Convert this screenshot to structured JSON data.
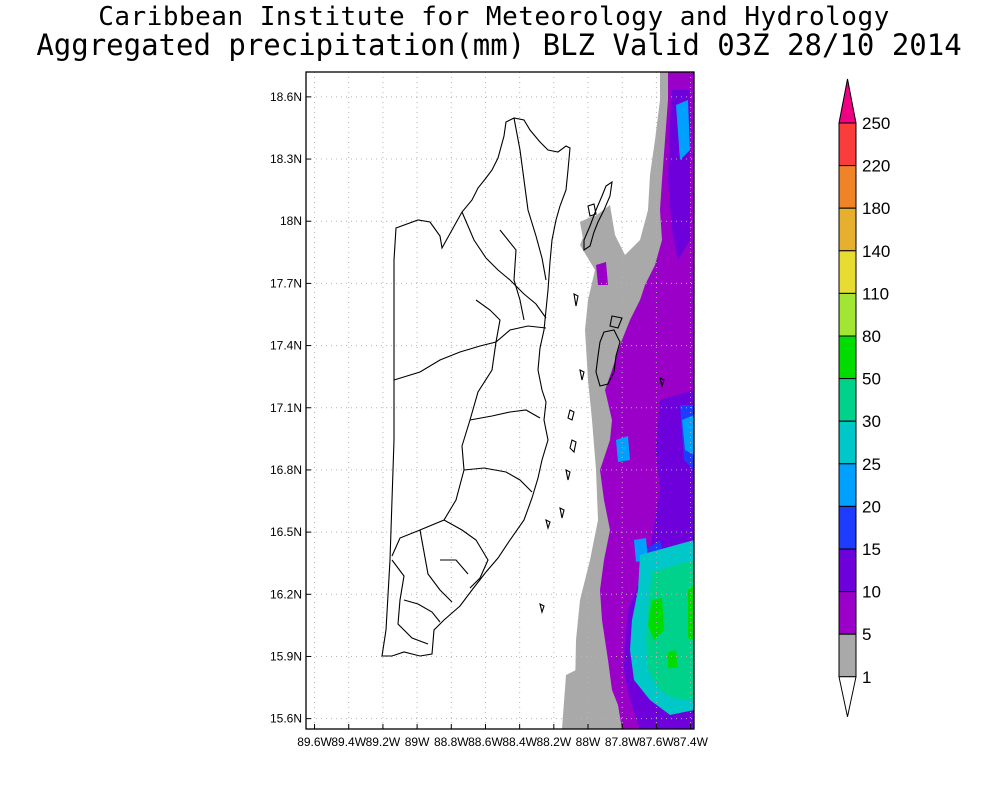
{
  "title": {
    "line1": "Caribbean Institute for Meteorology and Hydrology",
    "line2": "Aggregated precipitation(mm) BLZ Valid 03Z 28/10 2014"
  },
  "map": {
    "lat_labels": [
      "18.6N",
      "18.3N",
      "18N",
      "17.7N",
      "17.4N",
      "17.1N",
      "16.8N",
      "16.5N",
      "16.2N",
      "15.9N",
      "15.6N"
    ],
    "lon_labels": [
      "89.6W",
      "89.4W",
      "89.2W",
      "89W",
      "88.8W",
      "88.6W",
      "88.4W",
      "88.2W",
      "88W",
      "87.8W",
      "87.6W",
      "87.4W"
    ],
    "lat_range": [
      15.55,
      18.72
    ],
    "lon_range": [
      89.65,
      87.38
    ],
    "gridlines": true
  },
  "colorbar": {
    "labels": [
      "1",
      "5",
      "10",
      "15",
      "20",
      "25",
      "30",
      "50",
      "80",
      "110",
      "140",
      "180",
      "220",
      "250"
    ],
    "colors": {
      "1": "#a9a9a9",
      "5": "#9b00c8",
      "10": "#6e00dc",
      "15": "#1e3cff",
      "20": "#00a0ff",
      "25": "#00c8c8",
      "30": "#00d28c",
      "50": "#00dc00",
      "80": "#a0e632",
      "110": "#e6dc32",
      "140": "#e6af2d",
      "180": "#f08228",
      "220": "#fa3c3c",
      "250": "#f00082"
    }
  }
}
